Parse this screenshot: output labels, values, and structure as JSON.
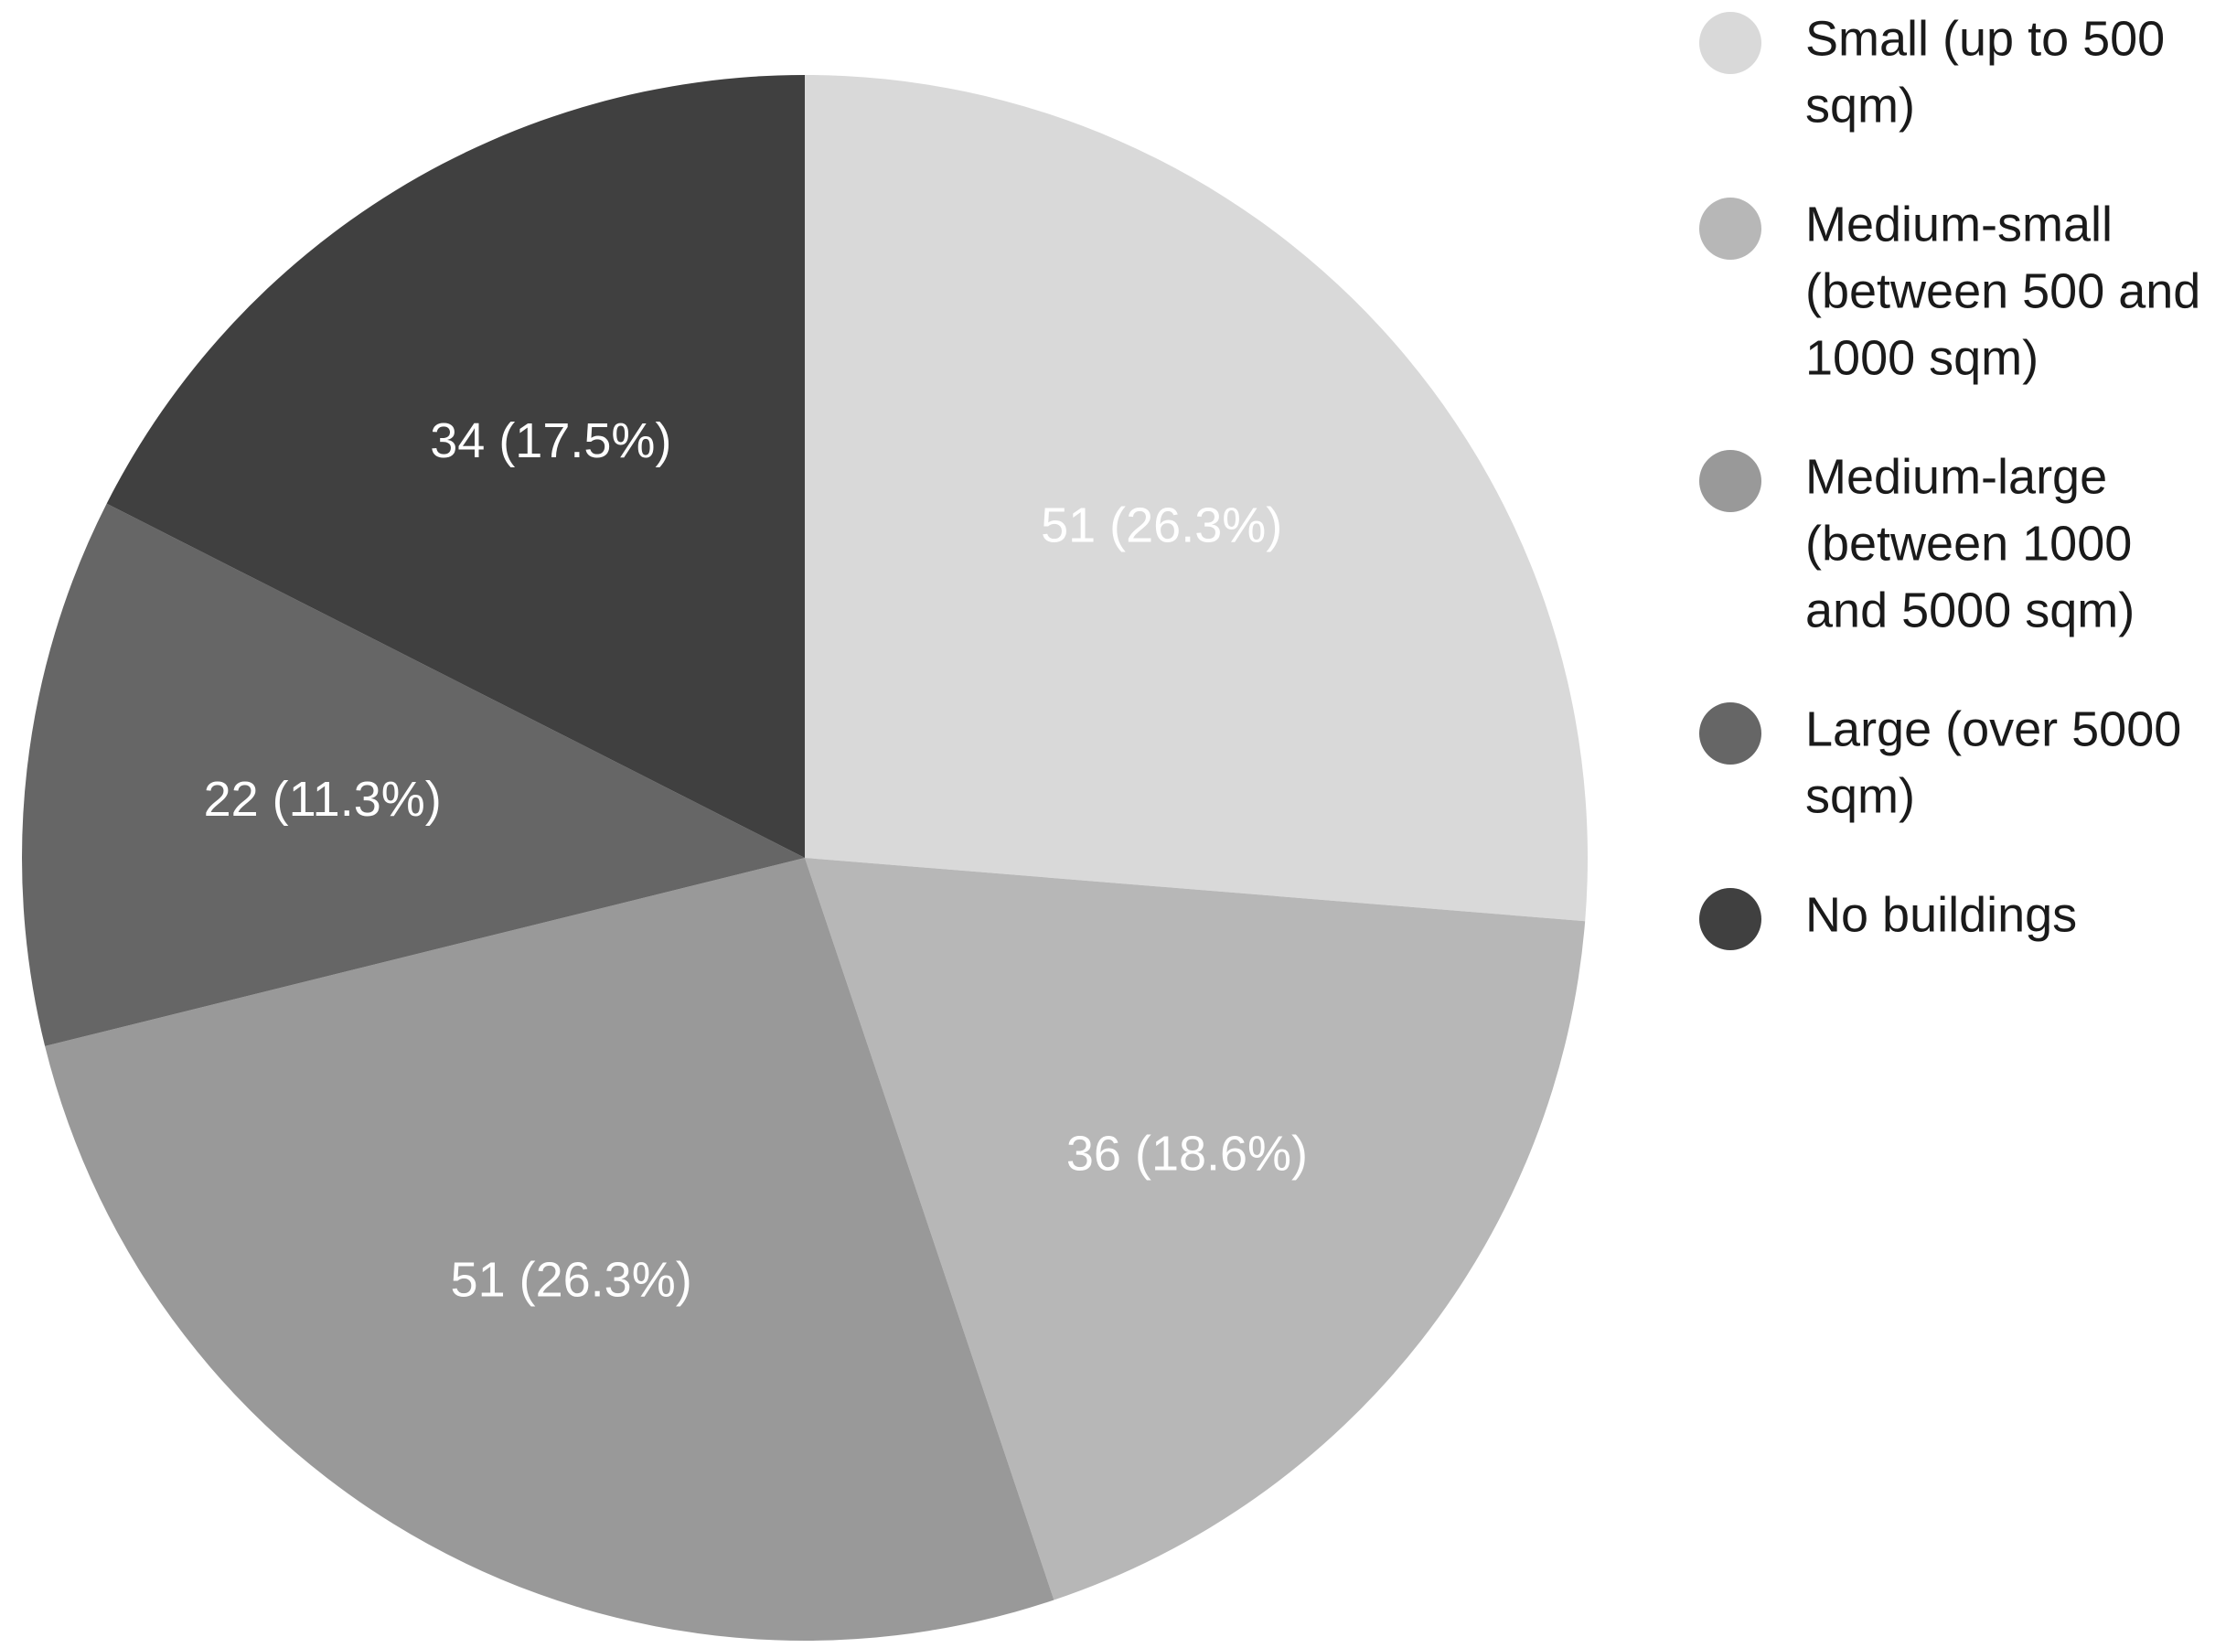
{
  "chart_data": {
    "type": "pie",
    "title": "",
    "start_angle": "12 o'clock, clockwise",
    "legend_position": "right",
    "slices": [
      {
        "label": "Small (up to 500 sqm)",
        "legend_lines": [
          "Small (up to 500",
          "sqm)"
        ],
        "value": 51,
        "percent": 26.3,
        "data_label": "51 (26.3%)",
        "color": "#d9d9d9"
      },
      {
        "label": "Medium-small (between 500 and 1000 sqm)",
        "legend_lines": [
          "Medium-small",
          "(between 500 and",
          "1000 sqm)"
        ],
        "value": 36,
        "percent": 18.6,
        "data_label": "36 (18.6%)",
        "color": "#b7b7b7"
      },
      {
        "label": "Medium-large (between 1000 and 5000 sqm)",
        "legend_lines": [
          "Medium-large",
          "(between 1000",
          "and 5000 sqm)"
        ],
        "value": 51,
        "percent": 26.3,
        "data_label": "51 (26.3%)",
        "color": "#999999"
      },
      {
        "label": "Large (over 5000 sqm)",
        "legend_lines": [
          "Large (over 5000",
          "sqm)"
        ],
        "value": 22,
        "percent": 11.3,
        "data_label": "22 (11.3%)",
        "color": "#666666"
      },
      {
        "label": "No buildings",
        "legend_lines": [
          "No buildings"
        ],
        "value": 34,
        "percent": 17.5,
        "data_label": "34 (17.5%)",
        "color": "#404040"
      }
    ]
  }
}
